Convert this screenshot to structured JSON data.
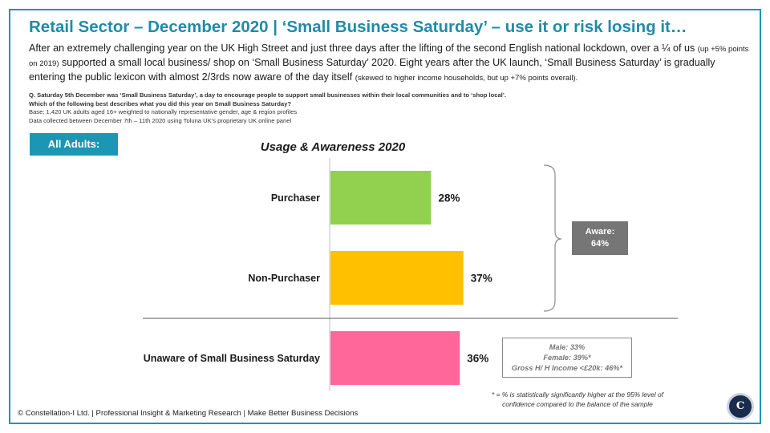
{
  "slide": {
    "title": "Retail Sector – December 2020  |  ‘Small Business Saturday’ – use it or risk losing it…",
    "intro_a": "After an extremely challenging year on the UK High Street and just three days after the lifting of the second English national lockdown, over a ¼ of us ",
    "intro_b": "(up +5% points on 2019)",
    "intro_c": " supported a small local business/ shop on ‘Small Business Saturday’ 2020. Eight years after the UK launch, ‘Small Business Saturday’ is gradually entering the public lexicon with almost 2/3rds now aware of the day itself ",
    "intro_d": "(skewed to higher income households, but up +7% points overall).",
    "question_1": "Q. Saturday 5th December was ‘Small Business Saturday’, a day to encourage people to support small businesses within their local communities  and to ‘shop local’.",
    "question_2": "Which of the following  best describes what you did this year on Small Business Saturday?",
    "base": "Base: 1,420 UK adults aged 16+ weighted to nationally  representative gender,  age & region profiles",
    "collected": "Data collected  between December 7th – 11th 2020 using  Toluna  UK’s proprietary  UK online  panel",
    "segment_tag": "All Adults:",
    "aware_label": "Aware:",
    "aware_value": "64%",
    "gender_male": "Male: 33%",
    "gender_female": "Female: 39%*",
    "gender_income": "Gross H/ H Income <£20k: 46%*",
    "footnote_1": "* = % is statistically  significantly  higher at the 95% level of",
    "footnote_2": "confidence compared  to the balance of the sample",
    "footer": "© Constellation-I Ltd. | Professional Insight & Marketing Research | Make Better Business Decisions",
    "logo_text": "C"
  },
  "chart_data": {
    "type": "bar",
    "orientation": "horizontal",
    "title": "Usage & Awareness 2020",
    "categories": [
      "Purchaser",
      "Non-Purchaser",
      "Unaware of Small Business Saturday"
    ],
    "values": [
      28,
      37,
      36
    ],
    "value_labels": [
      "28%",
      "37%",
      "36%"
    ],
    "colors": [
      "#92d050",
      "#ffc000",
      "#ff6699"
    ],
    "unit": "%",
    "xlim": [
      0,
      100
    ],
    "grid": false
  }
}
